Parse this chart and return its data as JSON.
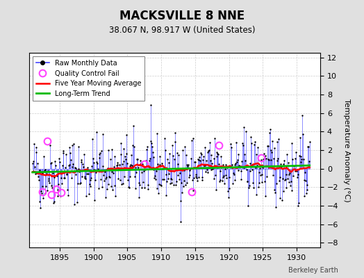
{
  "title": "MACKSVILLE 8 NNE",
  "subtitle": "38.067 N, 98.917 W (United States)",
  "ylabel": "Temperature Anomaly (°C)",
  "watermark": "Berkeley Earth",
  "xlim": [
    1890.5,
    1933.5
  ],
  "ylim": [
    -8.5,
    12.5
  ],
  "yticks": [
    -8,
    -6,
    -4,
    -2,
    0,
    2,
    4,
    6,
    8,
    10,
    12
  ],
  "xticks": [
    1895,
    1900,
    1905,
    1910,
    1915,
    1920,
    1925,
    1930
  ],
  "bg_color": "#e0e0e0",
  "plot_bg_color": "#ffffff",
  "raw_color": "#4444ff",
  "raw_alpha": 0.7,
  "dot_color": "#000000",
  "qc_color": "#ff44ff",
  "moving_avg_color": "#ff0000",
  "trend_color": "#00bb00",
  "seed": 42,
  "n_months": 492,
  "start_year": 1891.0,
  "qc_fail_times": [
    1892.5,
    1893.2,
    1893.8,
    1894.5,
    1895.2,
    1907.5,
    1914.5,
    1918.5,
    1924.8
  ],
  "qc_fail_values": [
    -2.5,
    3.0,
    -2.8,
    -2.2,
    -2.6,
    0.5,
    -2.5,
    2.5,
    1.2
  ]
}
